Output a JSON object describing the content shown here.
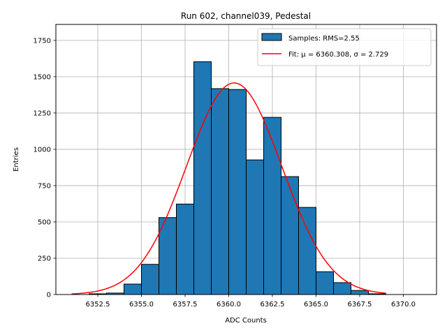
{
  "chart_data": {
    "type": "bar",
    "title": "Run 602, channel039, Pedestal",
    "xlabel": "ADC Counts",
    "ylabel": "Entries",
    "xlim": [
      6350.1,
      6371.9
    ],
    "ylim": [
      0,
      1860
    ],
    "xticks": [
      6352.5,
      6355.0,
      6357.5,
      6360.0,
      6362.5,
      6365.0,
      6367.5,
      6370.0
    ],
    "xtick_labels": [
      "6352.5",
      "6355.0",
      "6357.5",
      "6360.0",
      "6362.5",
      "6365.0",
      "6367.5",
      "6370.0"
    ],
    "yticks": [
      0,
      250,
      500,
      750,
      1000,
      1250,
      1500,
      1750
    ],
    "ytick_labels": [
      "0",
      "250",
      "500",
      "750",
      "1000",
      "1250",
      "1500",
      "1750"
    ],
    "grid": true,
    "legend_position": "top-right",
    "bin_edges": [
      6351,
      6352,
      6353,
      6354,
      6355,
      6356,
      6357,
      6358,
      6359,
      6360,
      6361,
      6362,
      6363,
      6364,
      6365,
      6366,
      6367,
      6368,
      6369,
      6370,
      6371
    ],
    "counts": [
      0,
      5,
      10,
      72,
      208,
      530,
      623,
      1603,
      1418,
      1412,
      927,
      1220,
      812,
      600,
      157,
      82,
      28,
      5,
      0,
      0
    ],
    "fit": {
      "mu": 6360.308,
      "sigma": 2.729,
      "amplitude": 1457,
      "x_range": [
        6351,
        6369
      ]
    },
    "series": [
      {
        "name": "Samples: RMS=2.55",
        "kind": "histogram",
        "color": "#1f77b4"
      },
      {
        "name": "Fit: μ = 6360.308, σ = 2.729",
        "kind": "line",
        "color": "#ff0000"
      }
    ]
  }
}
